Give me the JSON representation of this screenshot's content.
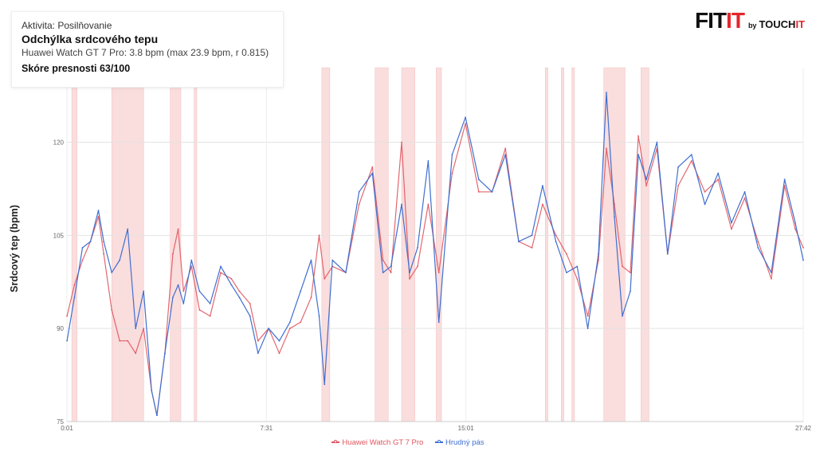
{
  "info": {
    "activity": "Aktivita: Posilňovanie",
    "title": "Odchýlka srdcového tepu",
    "stats": "Huawei Watch GT 7 Pro: 3.8 bpm  (max 23.9 bpm, r 0.815)",
    "score": "Skóre presnosti 63/100"
  },
  "brand": {
    "fit": "FIT",
    "it": "IT",
    "by": "by",
    "touch": "TOUCH",
    "touch_it": "IT"
  },
  "colors": {
    "watch": "#e0555f",
    "strap": "#3f6fd0",
    "highlight": "#f9d5d5",
    "accent": "#e3262b"
  },
  "chart_data": {
    "type": "line",
    "ylabel": "Srdcový tep (bpm)",
    "xlabel": "",
    "ylim": [
      75,
      132
    ],
    "yticks": [
      75,
      90,
      105,
      120
    ],
    "xlim_minutes": [
      0.017,
      27.7
    ],
    "xticks": [
      "0:01",
      "7:31",
      "15:01",
      "27:42"
    ],
    "xtick_minutes": [
      0.017,
      7.517,
      15.017,
      27.7
    ],
    "grid": true,
    "legend_position": "bottom",
    "deviation_windows_minutes": [
      [
        0.2,
        0.4
      ],
      [
        1.7,
        2.9
      ],
      [
        3.9,
        4.3
      ],
      [
        4.8,
        4.9
      ],
      [
        9.6,
        9.9
      ],
      [
        11.6,
        12.1
      ],
      [
        12.6,
        13.1
      ],
      [
        13.9,
        14.1
      ],
      [
        18.0,
        18.1
      ],
      [
        18.6,
        18.7
      ],
      [
        19.0,
        19.1
      ],
      [
        20.2,
        21.0
      ],
      [
        21.6,
        21.9
      ]
    ],
    "series": [
      {
        "name": "Huawei Watch GT 7 Pro",
        "color": "#e0555f",
        "x": [
          0.02,
          0.3,
          0.6,
          0.9,
          1.2,
          1.4,
          1.7,
          2.0,
          2.3,
          2.6,
          2.9,
          3.2,
          3.4,
          3.7,
          4.0,
          4.2,
          4.4,
          4.7,
          5.0,
          5.4,
          5.8,
          6.2,
          6.5,
          6.9,
          7.2,
          7.6,
          8.0,
          8.4,
          8.8,
          9.2,
          9.5,
          9.7,
          10.0,
          10.5,
          11.0,
          11.5,
          11.9,
          12.2,
          12.6,
          12.9,
          13.2,
          13.6,
          14.0,
          14.5,
          15.0,
          15.5,
          16.0,
          16.5,
          17.0,
          17.5,
          17.9,
          18.4,
          18.8,
          19.2,
          19.6,
          20.0,
          20.3,
          20.6,
          20.9,
          21.2,
          21.5,
          21.8,
          22.2,
          22.6,
          23.0,
          23.5,
          24.0,
          24.5,
          25.0,
          25.5,
          26.0,
          26.5,
          27.0,
          27.4,
          27.7
        ],
        "values": [
          92,
          97,
          101,
          104,
          108,
          102,
          93,
          88,
          88,
          86,
          90,
          80,
          76,
          86,
          102,
          106,
          96,
          100,
          93,
          92,
          99,
          98,
          96,
          94,
          88,
          90,
          86,
          90,
          91,
          95,
          105,
          98,
          100,
          99,
          110,
          116,
          101,
          99,
          120,
          98,
          100,
          110,
          99,
          115,
          123,
          112,
          112,
          119,
          104,
          103,
          110,
          105,
          102,
          98,
          92,
          101,
          119,
          110,
          100,
          99,
          121,
          113,
          119,
          102,
          113,
          117,
          112,
          114,
          106,
          111,
          104,
          98,
          113,
          106,
          103
        ]
      },
      {
        "name": "Hrudný pás",
        "color": "#3f6fd0",
        "x": [
          0.02,
          0.3,
          0.6,
          0.9,
          1.2,
          1.4,
          1.7,
          2.0,
          2.3,
          2.6,
          2.9,
          3.2,
          3.4,
          3.7,
          4.0,
          4.2,
          4.4,
          4.7,
          5.0,
          5.4,
          5.8,
          6.2,
          6.5,
          6.9,
          7.2,
          7.6,
          8.0,
          8.4,
          8.8,
          9.2,
          9.5,
          9.7,
          10.0,
          10.5,
          11.0,
          11.5,
          11.9,
          12.2,
          12.6,
          12.9,
          13.2,
          13.6,
          14.0,
          14.5,
          15.0,
          15.5,
          16.0,
          16.5,
          17.0,
          17.5,
          17.9,
          18.4,
          18.8,
          19.2,
          19.6,
          20.0,
          20.3,
          20.6,
          20.9,
          21.2,
          21.5,
          21.8,
          22.2,
          22.6,
          23.0,
          23.5,
          24.0,
          24.5,
          25.0,
          25.5,
          26.0,
          26.5,
          27.0,
          27.4,
          27.7
        ],
        "values": [
          88,
          95,
          103,
          104,
          109,
          104,
          99,
          101,
          106,
          90,
          96,
          80,
          76,
          86,
          95,
          97,
          94,
          101,
          96,
          94,
          100,
          97,
          95,
          92,
          86,
          90,
          88,
          91,
          96,
          101,
          92,
          81,
          101,
          99,
          112,
          115,
          99,
          100,
          110,
          99,
          103,
          117,
          91,
          118,
          124,
          114,
          112,
          118,
          104,
          105,
          113,
          104,
          99,
          100,
          90,
          102,
          128,
          108,
          92,
          96,
          118,
          114,
          120,
          102,
          116,
          118,
          110,
          115,
          107,
          112,
          103,
          99,
          114,
          107,
          101
        ]
      }
    ]
  }
}
